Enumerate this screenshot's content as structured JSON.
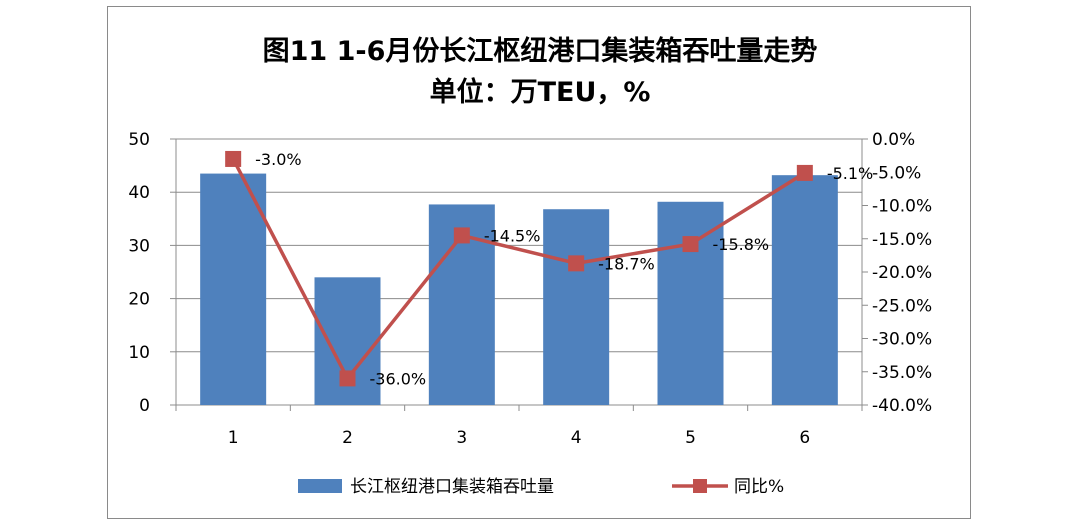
{
  "chart_data": {
    "type": "bar",
    "title": "图11  1-6月份长江枢纽港口集装箱吞吐量走势",
    "subtitle": "单位：万TEU，%",
    "categories": [
      "1",
      "2",
      "3",
      "4",
      "5",
      "6"
    ],
    "series": [
      {
        "name": "长江枢纽港口集装箱吞吐量",
        "type": "bar",
        "axis": "left",
        "color": "#4f81bd",
        "values": [
          43.5,
          24,
          37.7,
          36.8,
          38.2,
          43.2
        ]
      },
      {
        "name": "同比%",
        "type": "line",
        "axis": "right",
        "color": "#c0504d",
        "values": [
          -3.0,
          -36.0,
          -14.5,
          -18.7,
          -15.8,
          -5.1
        ],
        "labels": [
          "-3.0%",
          "-36.0%",
          "-14.5%",
          "-18.7%",
          "-15.8%",
          "-5.1%"
        ]
      }
    ],
    "y_left": {
      "min": 0,
      "max": 50,
      "step": 10,
      "ticks": [
        "0",
        "10",
        "20",
        "30",
        "40",
        "50"
      ]
    },
    "y_right": {
      "min": -40,
      "max": 0,
      "step": 5,
      "ticks": [
        "-40.0%",
        "-35.0%",
        "-30.0%",
        "-25.0%",
        "-20.0%",
        "-15.0%",
        "-10.0%",
        "-5.0%",
        "0.0%"
      ]
    },
    "grid": true,
    "legend": "bottom"
  }
}
